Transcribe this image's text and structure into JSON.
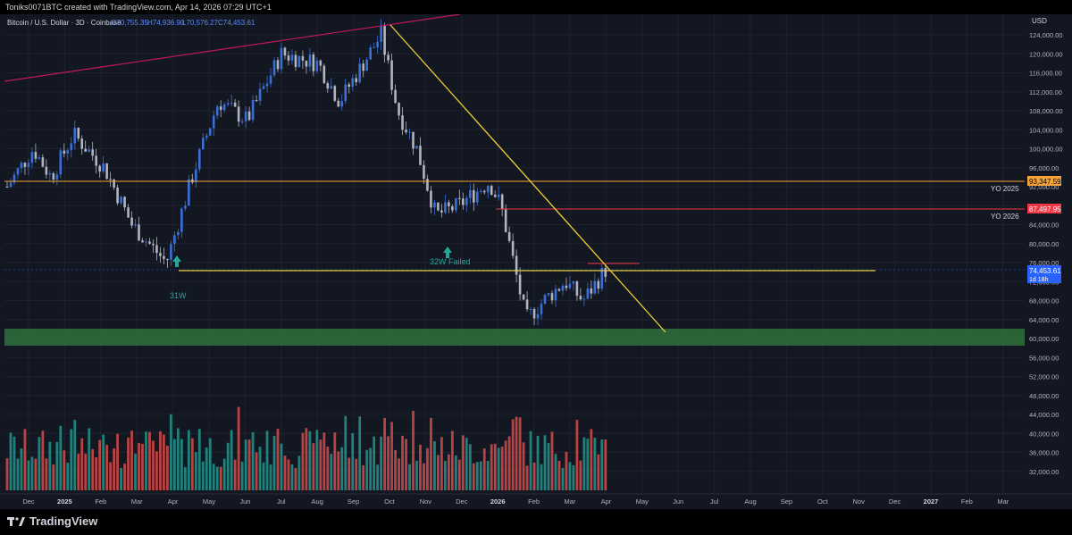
{
  "header": {
    "text": "Toniks0071BTC created with TradingView.com, Apr 14, 2026 07:29 UTC+1"
  },
  "legend": {
    "symbol": "Bitcoin / U.S. Dollar · 3D · Coinbase",
    "open": "O70,755.35",
    "high": "H74,936.90",
    "low": "L70,576.27",
    "close": "C74,453.61"
  },
  "axis": {
    "currency": "USD",
    "price_ticks": [
      124000,
      120000,
      116000,
      112000,
      108000,
      104000,
      100000,
      96000,
      92000,
      88000,
      84000,
      80000,
      76000,
      72000,
      68000,
      64000,
      60000,
      56000,
      52000,
      48000,
      44000,
      40000,
      36000,
      32000
    ],
    "price_tick_labels": [
      "124,000.00",
      "120,000.00",
      "116,000.00",
      "112,000.00",
      "108,000.00",
      "104,000.00",
      "100,000.00",
      "96,000.00",
      "92,000.00",
      "88,000.00",
      "84,000.00",
      "80,000.00",
      "76,000.00",
      "72,000.00",
      "68,000.00",
      "64,000.00",
      "60,000.00",
      "56,000.00",
      "52,000.00",
      "48,000.00",
      "44,000.00",
      "40,000.00",
      "36,000.00",
      "32,000.00"
    ],
    "time_labels": [
      "Dec",
      "2025",
      "Feb",
      "Mar",
      "Apr",
      "May",
      "Jun",
      "Jul",
      "Aug",
      "Sep",
      "Oct",
      "Nov",
      "Dec",
      "2026",
      "Feb",
      "Mar",
      "Apr",
      "May",
      "Jun",
      "Jul",
      "Aug",
      "Sep",
      "Oct",
      "Nov",
      "Dec",
      "2027",
      "Feb",
      "Mar"
    ]
  },
  "price_tags": {
    "yo2025": {
      "value": "93,347.59",
      "label": "YO 2025",
      "color": "#f7a53b"
    },
    "yo2026": {
      "value": "87,497.95",
      "label": "YO 2026",
      "color": "#f23645"
    },
    "last": {
      "value": "74,453.61",
      "countdown": "1d 18h",
      "color": "#2962ff"
    }
  },
  "annotations": {
    "w31": "31W",
    "w32": "32W Failed"
  },
  "colors": {
    "up": "#3a6fd8",
    "down": "#b2b5be",
    "vol_up": "#26a69a",
    "vol_down": "#ef5350",
    "trend_yellow": "#f2d035",
    "trend_red": "#c2185b",
    "support_zone": "#2e6b3a"
  },
  "brand": {
    "name": "TradingView"
  },
  "chart_data": {
    "type": "candlestick",
    "timeframe": "3D",
    "price_range": [
      28000,
      128000
    ],
    "series": [
      {
        "name": "price_close_approx",
        "x": [
          "2024-11-25",
          "2024-12-17",
          "2025-01-01",
          "2025-01-20",
          "2025-02-15",
          "2025-03-10",
          "2025-04-08",
          "2025-05-01",
          "2025-05-22",
          "2025-06-15",
          "2025-07-14",
          "2025-08-14",
          "2025-09-01",
          "2025-10-06",
          "2025-10-20",
          "2025-11-05",
          "2025-11-21",
          "2025-12-10",
          "2026-01-05",
          "2026-01-15",
          "2026-02-05",
          "2026-02-20",
          "2026-03-10",
          "2026-03-25",
          "2026-04-13"
        ],
        "y": [
          92000,
          100000,
          94000,
          103000,
          96000,
          84000,
          76000,
          95000,
          110000,
          106000,
          120000,
          118000,
          110000,
          124000,
          108000,
          100000,
          86000,
          88000,
          93000,
          88000,
          64000,
          68000,
          72000,
          68000,
          74450
        ]
      }
    ],
    "levels": [
      {
        "name": "YO 2025",
        "value": 93347.59
      },
      {
        "name": "YO 2026",
        "value": 87497.95
      },
      {
        "name": "31W support",
        "value": 74500
      }
    ],
    "support_zone": [
      58800,
      62200
    ],
    "grid": true
  }
}
